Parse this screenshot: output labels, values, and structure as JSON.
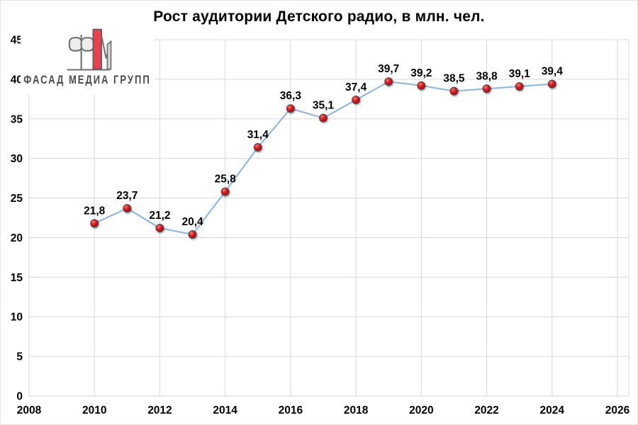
{
  "window": {
    "background": "#ffffff",
    "border_color": "#e4e4e4"
  },
  "logo": {
    "name": "Фасад Медиа Групп",
    "text": "ФАСАД МЕДИА ГРУПП",
    "text_color": "#4b4b4b",
    "accent_red": "#ee3f4d",
    "outline_gray": "#6f6f6f",
    "fill_light": "#ededed",
    "fill_gray": "#d9d9d9"
  },
  "chart_data": {
    "type": "line",
    "title": "Рост аудитории Детского радио, в млн. чел.",
    "x": [
      2010,
      2011,
      2012,
      2013,
      2014,
      2015,
      2016,
      2017,
      2018,
      2019,
      2020,
      2021,
      2022,
      2023,
      2024
    ],
    "values": [
      21.8,
      23.7,
      21.2,
      20.4,
      25.8,
      31.4,
      36.3,
      35.1,
      37.4,
      39.7,
      39.2,
      38.5,
      38.8,
      39.1,
      39.4
    ],
    "point_labels": [
      "21,8",
      "23,7",
      "21,2",
      "20,4",
      "25,8",
      "31,4",
      "36,3",
      "35,1",
      "37,4",
      "39,7",
      "39,2",
      "38,5",
      "38,8",
      "39,1",
      "39,4"
    ],
    "xlabel": "",
    "ylabel": "",
    "x_axis": {
      "min": 2008,
      "max": 2026,
      "tick_step": 2,
      "ticks": [
        "2008",
        "2010",
        "2012",
        "2014",
        "2016",
        "2018",
        "2020",
        "2022",
        "2024",
        "2026"
      ]
    },
    "y_axis": {
      "min": 0,
      "max": 45,
      "tick_step": 5,
      "ticks": [
        "0",
        "5",
        "10",
        "15",
        "20",
        "25",
        "30",
        "35",
        "40",
        "45"
      ]
    },
    "grid": true,
    "legend": "none",
    "colors": {
      "line": "#8fb9e4",
      "marker_fill": "#dd1420",
      "marker_fill_light": "#ff7a6e",
      "marker_fill_dark": "#9c0d14",
      "marker_stroke": "#4a4a4a",
      "gridline": "#d9d9d9",
      "axis_text": "#000000",
      "title_text": "#000000",
      "data_label": "#000000"
    }
  }
}
